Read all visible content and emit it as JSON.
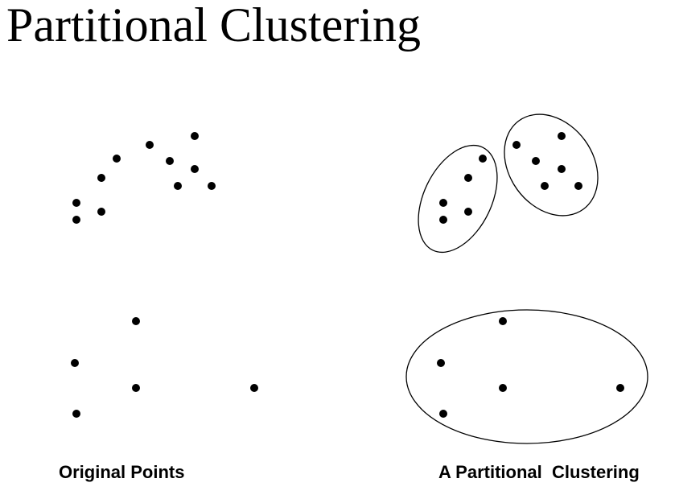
{
  "title": "Partitional Clustering",
  "captions": {
    "left": "Original Points",
    "right": "A Partitional  Clustering"
  },
  "colors": {
    "point": "#000000",
    "outline": "#000000",
    "background": "#ffffff"
  }
}
